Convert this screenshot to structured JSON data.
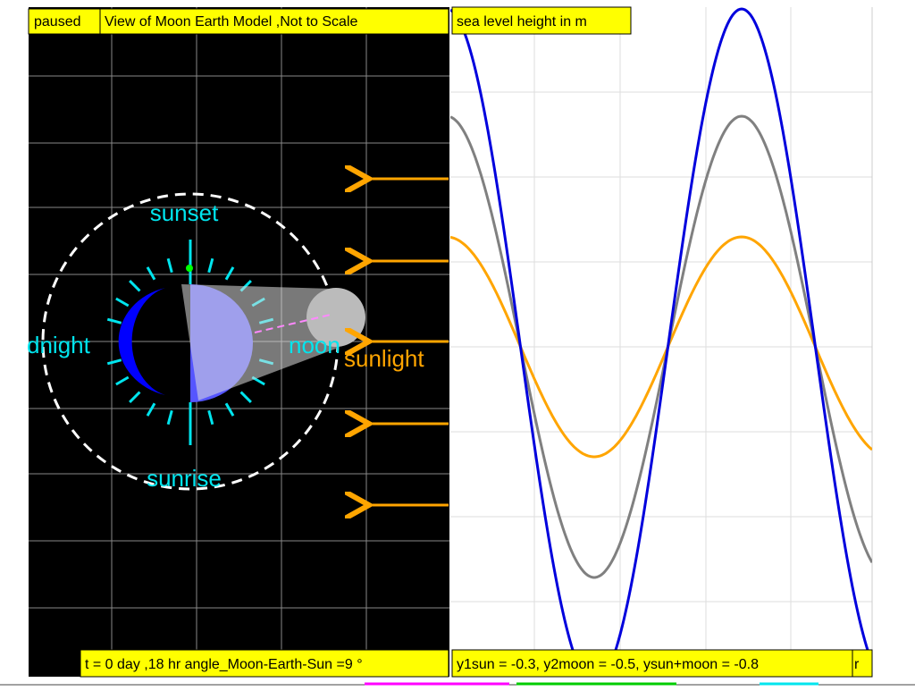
{
  "header": {
    "status": "paused",
    "title": "View of Moon Earth Model ,Not to Scale",
    "graph_title": "sea level height in m"
  },
  "model": {
    "sunset": "sunset",
    "night": "dnight",
    "noon": "noon",
    "sunrise": "sunrise",
    "sunlight": "sunlight"
  },
  "footer": {
    "time": "t = 0 day ,18 hr angle_Moon-Earth-Sun =9 °",
    "heights": "y1sun = -0.3, y2moon = -0.5, ysun+moon = -0.8",
    "extra": "r"
  }
}
